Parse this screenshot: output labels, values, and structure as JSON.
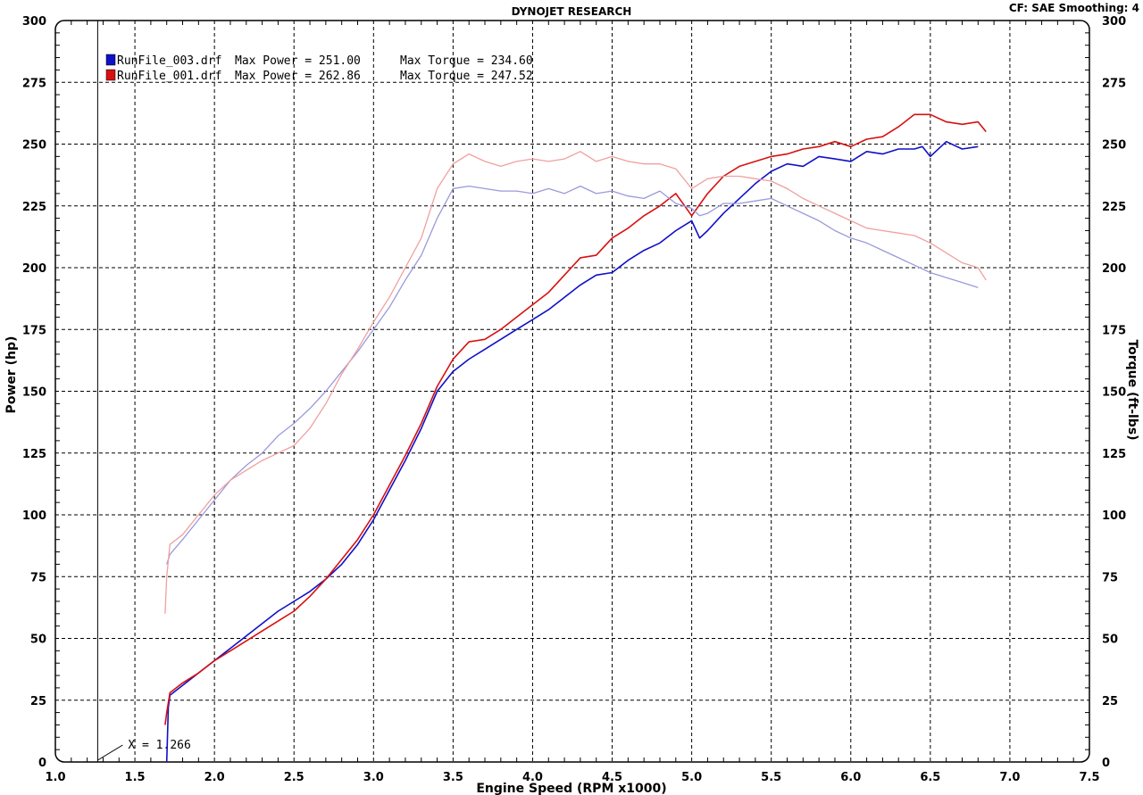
{
  "header": {
    "title": "DYNOJET RESEARCH",
    "settings": "CF: SAE  Smoothing: 4"
  },
  "cursor": {
    "label": "X = 1.266",
    "x": 1.266
  },
  "legend": [
    {
      "file": "RunFile_003.drf",
      "power_text": "Max Power = 251.00",
      "torque_text": "Max Torque = 234.60",
      "color": "#1010c8"
    },
    {
      "file": "RunFile_001.drf",
      "power_text": "Max Power = 262.86",
      "torque_text": "Max Torque = 247.52",
      "color": "#d81010"
    }
  ],
  "chart_data": {
    "type": "line",
    "title": "DYNOJET RESEARCH",
    "xlabel": "Engine Speed (RPM x1000)",
    "ylabel": "Power (hp)",
    "y2label": "Torque (ft-lbs)",
    "xlim": [
      1.0,
      7.5
    ],
    "ylim": [
      0,
      300
    ],
    "y2lim": [
      0,
      300
    ],
    "x_ticks": [
      "1.0",
      "1.5",
      "2.0",
      "2.5",
      "3.0",
      "3.5",
      "4.0",
      "4.5",
      "5.0",
      "5.5",
      "6.0",
      "6.5",
      "7.0",
      "7.5"
    ],
    "y_ticks": [
      "0",
      "25",
      "50",
      "75",
      "100",
      "125",
      "150",
      "175",
      "200",
      "225",
      "250",
      "275",
      "300"
    ],
    "y2_ticks": [
      "0",
      "25",
      "50",
      "75",
      "100",
      "125",
      "150",
      "175",
      "200",
      "225",
      "250",
      "275",
      "300"
    ],
    "grid": true,
    "legend_position": "top-left",
    "series": [
      {
        "name": "RunFile_003.drf",
        "quantity": "power",
        "axis": "left",
        "color": "#1010c8",
        "points": [
          [
            1.7,
            0
          ],
          [
            1.71,
            22
          ],
          [
            1.72,
            27
          ],
          [
            1.8,
            31
          ],
          [
            1.9,
            36
          ],
          [
            2.0,
            41
          ],
          [
            2.1,
            46
          ],
          [
            2.2,
            51
          ],
          [
            2.3,
            56
          ],
          [
            2.4,
            61
          ],
          [
            2.5,
            65
          ],
          [
            2.6,
            69
          ],
          [
            2.7,
            74
          ],
          [
            2.8,
            80
          ],
          [
            2.9,
            88
          ],
          [
            3.0,
            98
          ],
          [
            3.1,
            110
          ],
          [
            3.2,
            122
          ],
          [
            3.3,
            135
          ],
          [
            3.4,
            150
          ],
          [
            3.5,
            158
          ],
          [
            3.6,
            163
          ],
          [
            3.7,
            167
          ],
          [
            3.8,
            171
          ],
          [
            3.9,
            175
          ],
          [
            4.0,
            179
          ],
          [
            4.1,
            183
          ],
          [
            4.2,
            188
          ],
          [
            4.3,
            193
          ],
          [
            4.4,
            197
          ],
          [
            4.5,
            198
          ],
          [
            4.6,
            203
          ],
          [
            4.7,
            207
          ],
          [
            4.8,
            210
          ],
          [
            4.9,
            215
          ],
          [
            5.0,
            219
          ],
          [
            5.05,
            212
          ],
          [
            5.1,
            215
          ],
          [
            5.2,
            222
          ],
          [
            5.3,
            228
          ],
          [
            5.4,
            234
          ],
          [
            5.5,
            239
          ],
          [
            5.6,
            242
          ],
          [
            5.7,
            241
          ],
          [
            5.8,
            245
          ],
          [
            5.9,
            244
          ],
          [
            6.0,
            243
          ],
          [
            6.1,
            247
          ],
          [
            6.2,
            246
          ],
          [
            6.3,
            248
          ],
          [
            6.4,
            248
          ],
          [
            6.45,
            249
          ],
          [
            6.5,
            245
          ],
          [
            6.6,
            251
          ],
          [
            6.7,
            248
          ],
          [
            6.8,
            249
          ]
        ]
      },
      {
        "name": "RunFile_001.drf",
        "quantity": "power",
        "axis": "left",
        "color": "#d81010",
        "points": [
          [
            1.69,
            15
          ],
          [
            1.7,
            20
          ],
          [
            1.72,
            28
          ],
          [
            1.8,
            32
          ],
          [
            1.9,
            36
          ],
          [
            2.0,
            41
          ],
          [
            2.1,
            45
          ],
          [
            2.2,
            49
          ],
          [
            2.3,
            53
          ],
          [
            2.4,
            57
          ],
          [
            2.5,
            61
          ],
          [
            2.6,
            67
          ],
          [
            2.7,
            74
          ],
          [
            2.8,
            82
          ],
          [
            2.9,
            90
          ],
          [
            3.0,
            100
          ],
          [
            3.1,
            112
          ],
          [
            3.2,
            124
          ],
          [
            3.3,
            137
          ],
          [
            3.4,
            152
          ],
          [
            3.5,
            163
          ],
          [
            3.6,
            170
          ],
          [
            3.7,
            171
          ],
          [
            3.8,
            175
          ],
          [
            3.9,
            180
          ],
          [
            4.0,
            185
          ],
          [
            4.1,
            190
          ],
          [
            4.2,
            197
          ],
          [
            4.3,
            204
          ],
          [
            4.4,
            205
          ],
          [
            4.5,
            212
          ],
          [
            4.6,
            216
          ],
          [
            4.7,
            221
          ],
          [
            4.8,
            225
          ],
          [
            4.9,
            230
          ],
          [
            5.0,
            221
          ],
          [
            5.1,
            230
          ],
          [
            5.2,
            237
          ],
          [
            5.3,
            241
          ],
          [
            5.4,
            243
          ],
          [
            5.5,
            245
          ],
          [
            5.6,
            246
          ],
          [
            5.7,
            248
          ],
          [
            5.8,
            249
          ],
          [
            5.9,
            251
          ],
          [
            6.0,
            249
          ],
          [
            6.1,
            252
          ],
          [
            6.2,
            253
          ],
          [
            6.3,
            257
          ],
          [
            6.4,
            262
          ],
          [
            6.5,
            262
          ],
          [
            6.6,
            259
          ],
          [
            6.7,
            258
          ],
          [
            6.8,
            259
          ],
          [
            6.85,
            255
          ]
        ]
      },
      {
        "name": "RunFile_003.drf",
        "quantity": "torque",
        "axis": "right",
        "color": "#9a9adc",
        "points": [
          [
            1.7,
            80
          ],
          [
            1.72,
            84
          ],
          [
            1.8,
            90
          ],
          [
            1.9,
            98
          ],
          [
            2.0,
            106
          ],
          [
            2.1,
            114
          ],
          [
            2.2,
            120
          ],
          [
            2.3,
            125
          ],
          [
            2.4,
            132
          ],
          [
            2.5,
            137
          ],
          [
            2.6,
            143
          ],
          [
            2.7,
            150
          ],
          [
            2.8,
            158
          ],
          [
            2.9,
            166
          ],
          [
            3.0,
            175
          ],
          [
            3.1,
            184
          ],
          [
            3.2,
            195
          ],
          [
            3.3,
            205
          ],
          [
            3.4,
            220
          ],
          [
            3.5,
            232
          ],
          [
            3.6,
            233
          ],
          [
            3.7,
            232
          ],
          [
            3.8,
            231
          ],
          [
            3.9,
            231
          ],
          [
            4.0,
            230
          ],
          [
            4.1,
            232
          ],
          [
            4.2,
            230
          ],
          [
            4.3,
            233
          ],
          [
            4.4,
            230
          ],
          [
            4.5,
            231
          ],
          [
            4.6,
            229
          ],
          [
            4.7,
            228
          ],
          [
            4.8,
            231
          ],
          [
            4.9,
            226
          ],
          [
            5.0,
            224
          ],
          [
            5.05,
            221
          ],
          [
            5.1,
            222
          ],
          [
            5.2,
            226
          ],
          [
            5.3,
            226
          ],
          [
            5.4,
            227
          ],
          [
            5.5,
            228
          ],
          [
            5.6,
            225
          ],
          [
            5.7,
            222
          ],
          [
            5.8,
            219
          ],
          [
            5.9,
            215
          ],
          [
            6.0,
            212
          ],
          [
            6.1,
            210
          ],
          [
            6.2,
            207
          ],
          [
            6.3,
            204
          ],
          [
            6.4,
            201
          ],
          [
            6.5,
            198
          ],
          [
            6.6,
            196
          ],
          [
            6.7,
            194
          ],
          [
            6.8,
            192
          ]
        ]
      },
      {
        "name": "RunFile_001.drf",
        "quantity": "torque",
        "axis": "right",
        "color": "#f0a0a0",
        "points": [
          [
            1.69,
            60
          ],
          [
            1.7,
            75
          ],
          [
            1.72,
            88
          ],
          [
            1.8,
            92
          ],
          [
            1.9,
            100
          ],
          [
            2.0,
            108
          ],
          [
            2.1,
            114
          ],
          [
            2.2,
            118
          ],
          [
            2.3,
            122
          ],
          [
            2.4,
            125
          ],
          [
            2.5,
            128
          ],
          [
            2.6,
            135
          ],
          [
            2.7,
            145
          ],
          [
            2.8,
            157
          ],
          [
            2.9,
            167
          ],
          [
            3.0,
            178
          ],
          [
            3.1,
            188
          ],
          [
            3.2,
            200
          ],
          [
            3.3,
            212
          ],
          [
            3.4,
            232
          ],
          [
            3.5,
            242
          ],
          [
            3.6,
            246
          ],
          [
            3.7,
            243
          ],
          [
            3.8,
            241
          ],
          [
            3.9,
            243
          ],
          [
            4.0,
            244
          ],
          [
            4.1,
            243
          ],
          [
            4.2,
            244
          ],
          [
            4.3,
            247
          ],
          [
            4.4,
            243
          ],
          [
            4.5,
            245
          ],
          [
            4.6,
            243
          ],
          [
            4.7,
            242
          ],
          [
            4.8,
            242
          ],
          [
            4.9,
            240
          ],
          [
            5.0,
            232
          ],
          [
            5.1,
            236
          ],
          [
            5.2,
            237
          ],
          [
            5.3,
            237
          ],
          [
            5.4,
            236
          ],
          [
            5.5,
            235
          ],
          [
            5.6,
            232
          ],
          [
            5.7,
            228
          ],
          [
            5.8,
            225
          ],
          [
            5.9,
            222
          ],
          [
            6.0,
            219
          ],
          [
            6.1,
            216
          ],
          [
            6.2,
            215
          ],
          [
            6.3,
            214
          ],
          [
            6.4,
            213
          ],
          [
            6.5,
            210
          ],
          [
            6.6,
            206
          ],
          [
            6.7,
            202
          ],
          [
            6.8,
            200
          ],
          [
            6.85,
            195
          ]
        ]
      }
    ]
  }
}
